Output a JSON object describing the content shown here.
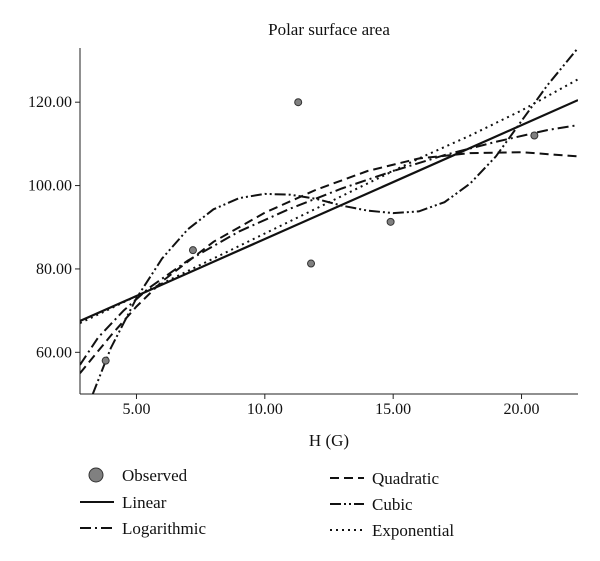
{
  "chart_data": {
    "type": "scatter",
    "title": "Polar surface area",
    "xlabel": "H (G)",
    "ylabel": "",
    "xlim": [
      2.8,
      22.2
    ],
    "ylim": [
      50,
      133
    ],
    "xticks": [
      5,
      10,
      15,
      20
    ],
    "yticks": [
      60,
      80,
      100,
      120
    ],
    "tick_format": "fixed2",
    "grid": false,
    "legend_position": "bottom",
    "observed": {
      "name": "Observed",
      "color": "#808080",
      "points": [
        {
          "x": 3.8,
          "y": 58.0
        },
        {
          "x": 7.2,
          "y": 84.5
        },
        {
          "x": 11.3,
          "y": 120.0
        },
        {
          "x": 11.8,
          "y": 81.3
        },
        {
          "x": 14.9,
          "y": 91.3
        },
        {
          "x": 20.5,
          "y": 112.0
        }
      ]
    },
    "fits": [
      {
        "name": "Linear",
        "dash": "solid",
        "x": [
          2.8,
          22.2
        ],
        "y": [
          67.5,
          120.5
        ]
      },
      {
        "name": "Logarithmic",
        "dash": "dashdot",
        "x": [
          2.8,
          3.5,
          4.5,
          5.5,
          7,
          9,
          11,
          13,
          15,
          17,
          19,
          21,
          22.2
        ],
        "y": [
          57.0,
          63.5,
          70.0,
          75.5,
          82.0,
          89.0,
          94.5,
          99.3,
          103.5,
          107.3,
          110.5,
          113.3,
          114.5
        ]
      },
      {
        "name": "Quadratic",
        "dash": "dashed",
        "x": [
          2.8,
          4,
          5,
          6,
          8,
          10,
          12,
          14,
          16,
          18,
          20,
          22.2
        ],
        "y": [
          55.0,
          64.0,
          71.0,
          77.0,
          86.5,
          93.5,
          99.0,
          103.5,
          106.5,
          107.8,
          108.0,
          107.0
        ]
      },
      {
        "name": "Cubic",
        "dash": "dashdotdot",
        "x": [
          3.3,
          4,
          5,
          6,
          7,
          8,
          9,
          10,
          11,
          12,
          13,
          14,
          15,
          16,
          17,
          18,
          19,
          20,
          21,
          22.2
        ],
        "y": [
          50.0,
          61.0,
          73.0,
          82.5,
          89.5,
          94.3,
          97.0,
          98.0,
          97.8,
          96.8,
          95.2,
          94.0,
          93.4,
          93.8,
          96.0,
          100.5,
          107.0,
          115.5,
          124.0,
          133.0
        ]
      },
      {
        "name": "Exponential",
        "dash": "dotted",
        "x": [
          2.8,
          4,
          6,
          8,
          10,
          12,
          14,
          16,
          18,
          20,
          22.2
        ],
        "y": [
          67.0,
          70.5,
          76.5,
          82.5,
          88.5,
          94.5,
          100.5,
          106.5,
          112.0,
          118.0,
          125.5
        ]
      }
    ],
    "legend": [
      {
        "label": "Observed",
        "kind": "point"
      },
      {
        "label": "Linear",
        "kind": "solid"
      },
      {
        "label": "Logarithmic",
        "kind": "dashdot"
      },
      {
        "label": "Quadratic",
        "kind": "dashed"
      },
      {
        "label": "Cubic",
        "kind": "dashdotdot"
      },
      {
        "label": "Exponential",
        "kind": "dotted"
      }
    ]
  }
}
